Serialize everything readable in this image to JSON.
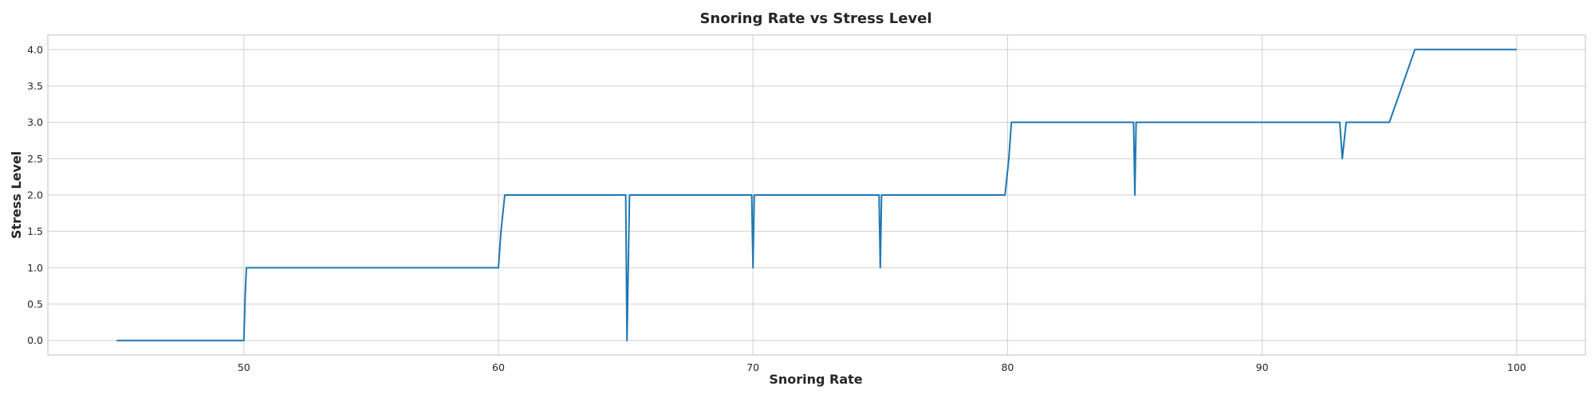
{
  "chart_data": {
    "type": "line",
    "title": "Snoring Rate vs Stress Level",
    "xlabel": "Snoring Rate",
    "ylabel": "Stress Level",
    "xlim": [
      42.3,
      102.7
    ],
    "ylim": [
      -0.2,
      4.2
    ],
    "xticks": [
      50,
      60,
      70,
      80,
      90,
      100
    ],
    "yticks": [
      "0.0",
      "0.5",
      "1.0",
      "1.5",
      "2.0",
      "2.5",
      "3.0",
      "3.5",
      "4.0"
    ],
    "grid": true,
    "series": [
      {
        "color": "#1f77b4",
        "x": [
          45,
          50,
          50.05,
          50.1,
          60,
          60.1,
          60.25,
          65,
          65.05,
          65.15,
          69.95,
          70,
          70.05,
          74.95,
          75,
          75.05,
          79.9,
          80.05,
          80.15,
          84.95,
          85,
          85.05,
          93.05,
          93.15,
          93.3,
          95,
          96,
          100
        ],
        "y": [
          0,
          0,
          0.6,
          1.0,
          1.0,
          1.5,
          2.0,
          2.0,
          0.0,
          2.0,
          2.0,
          1.0,
          2.0,
          2.0,
          1.0,
          2.0,
          2.0,
          2.5,
          3.0,
          3.0,
          2.0,
          3.0,
          3.0,
          2.5,
          3.0,
          3.0,
          4.0,
          4.0
        ]
      }
    ]
  }
}
